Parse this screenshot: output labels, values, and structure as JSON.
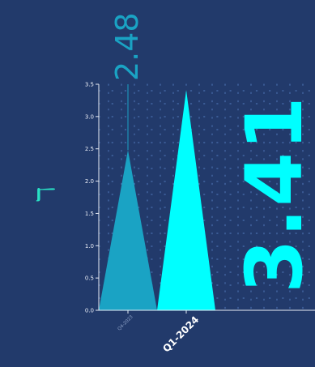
{
  "colors": {
    "background": "#223a6b",
    "axis": "#e8ecf5",
    "grid_dots": "#4a6fae",
    "highlight": "#00ffff",
    "muted": "#1aa3c4",
    "ylabel_color": "#28e0c4"
  },
  "chart_data": {
    "type": "area",
    "x": [
      "Q4-2023",
      "Q1-2024"
    ],
    "values": [
      2.48,
      3.41
    ],
    "highlight_index": 1,
    "ylabel": "ℸ",
    "xlabel": "",
    "ylim": [
      0,
      3.5
    ],
    "yticks": [
      "0.0",
      "0.5",
      "1.0",
      "1.5",
      "2.0",
      "2.5",
      "3.0",
      "3.5"
    ],
    "grid": true,
    "annotations": {
      "previous_value": "2.48",
      "current_value": "3.41"
    }
  }
}
